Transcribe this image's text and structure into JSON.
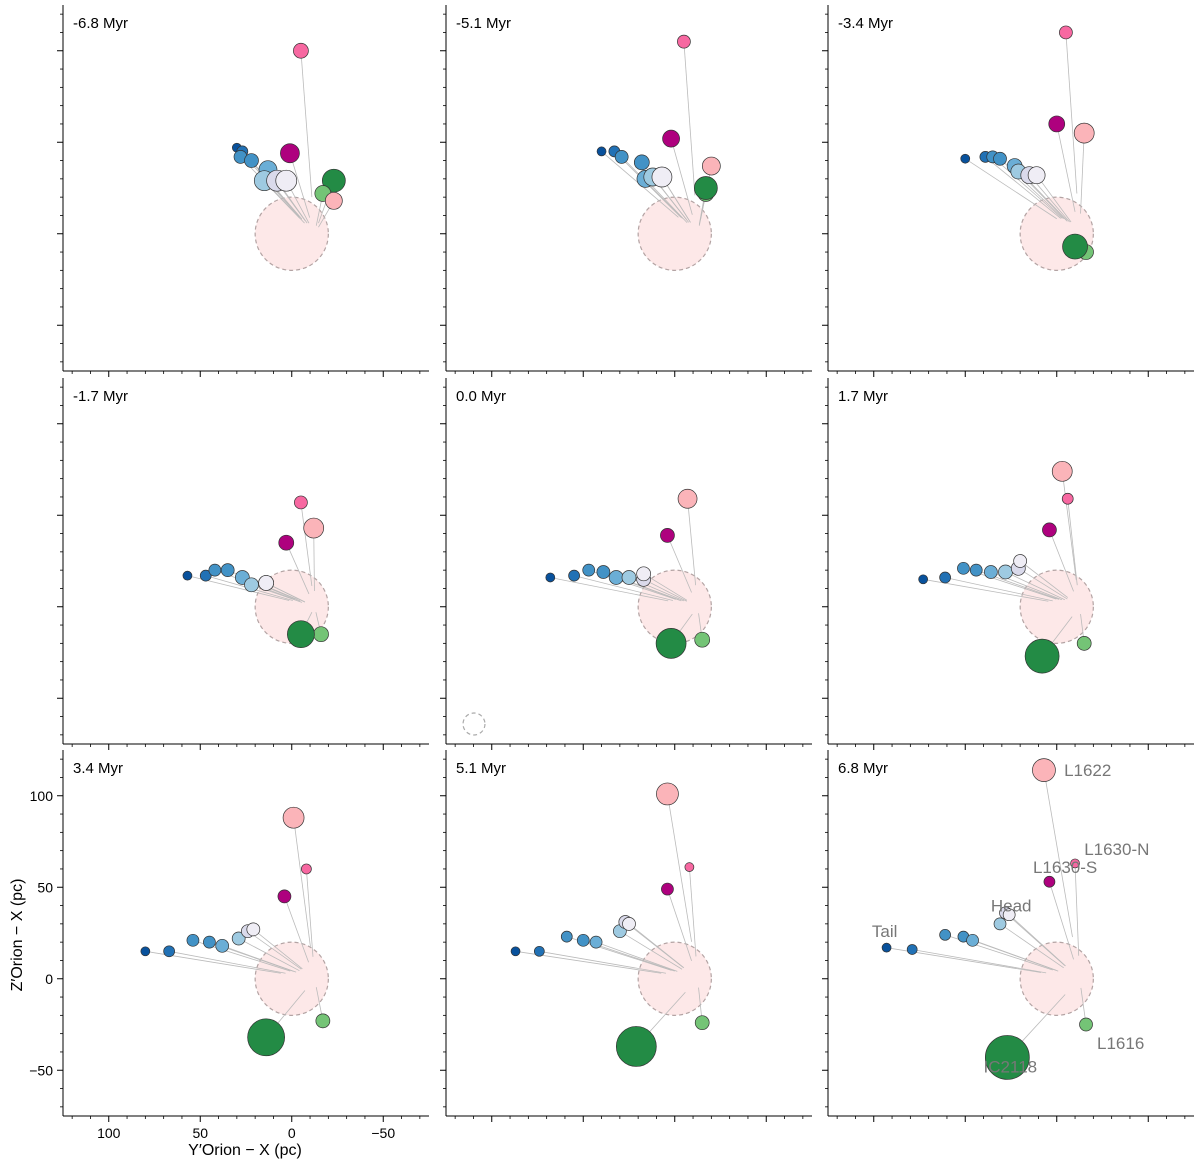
{
  "chart_data": {
    "type": "scatter",
    "xlabel": "Y′Orion − X (pc)",
    "ylabel": "Z′Orion − X (pc)",
    "x_axis": {
      "reversed": true,
      "xlim": [
        125,
        -75
      ],
      "ticks": [
        100,
        50,
        0,
        -50
      ],
      "tick_labels": [
        "100",
        "50",
        "0",
        "−50"
      ]
    },
    "y_axis": {
      "ylim": [
        -75,
        125
      ],
      "ticks": [
        -50,
        0,
        50,
        100
      ],
      "tick_labels": [
        "−50",
        "0",
        "50",
        "100"
      ]
    },
    "grid": false,
    "layout": {
      "rows": 3,
      "cols": 3
    },
    "bubble_region": {
      "center": [
        0,
        0
      ],
      "radius": 20,
      "fill": "#fde8e8",
      "stroke": "#b3a3a3"
    },
    "reference_circle_size": 6,
    "panels": [
      {
        "title": "-6.8 Myr",
        "points": [
          {
            "x": -5,
            "y": 100,
            "r": 7.5,
            "color": "#f768a1"
          },
          {
            "x": 30,
            "y": 47,
            "r": 4.5,
            "color": "#08519c"
          },
          {
            "x": 27,
            "y": 45,
            "r": 5.5,
            "color": "#2171b5"
          },
          {
            "x": 28,
            "y": 42,
            "r": 6.5,
            "color": "#4292c6"
          },
          {
            "x": 22,
            "y": 40,
            "r": 7.0,
            "color": "#4292c6"
          },
          {
            "x": 1,
            "y": 44,
            "r": 9.5,
            "color": "#ae017e"
          },
          {
            "x": 13,
            "y": 35,
            "r": 9.0,
            "color": "#6baed6"
          },
          {
            "x": 15,
            "y": 29,
            "r": 10.0,
            "color": "#9ecae1"
          },
          {
            "x": 8,
            "y": 29,
            "r": 10.5,
            "color": "#dadaeb"
          },
          {
            "x": 3,
            "y": 29,
            "r": 10.5,
            "color": "#efedf5"
          },
          {
            "x": -23,
            "y": 29,
            "r": 11.5,
            "color": "#238b45"
          },
          {
            "x": -17,
            "y": 22,
            "r": 8.0,
            "color": "#74c476"
          },
          {
            "x": -23,
            "y": 18,
            "r": 8.5,
            "color": "#fbb4b9"
          }
        ]
      },
      {
        "title": "-5.1 Myr",
        "points": [
          {
            "x": -5,
            "y": 105,
            "r": 6.5,
            "color": "#f768a1"
          },
          {
            "x": 40,
            "y": 45,
            "r": 4.5,
            "color": "#08519c"
          },
          {
            "x": 33,
            "y": 45,
            "r": 5.5,
            "color": "#2171b5"
          },
          {
            "x": 29,
            "y": 42,
            "r": 6.5,
            "color": "#4292c6"
          },
          {
            "x": 18,
            "y": 39,
            "r": 7.5,
            "color": "#4292c6"
          },
          {
            "x": 2,
            "y": 52,
            "r": 8.5,
            "color": "#ae017e"
          },
          {
            "x": 16,
            "y": 30,
            "r": 8.5,
            "color": "#6baed6"
          },
          {
            "x": 12,
            "y": 31,
            "r": 9.0,
            "color": "#9ecae1"
          },
          {
            "x": 7,
            "y": 31,
            "r": 9.5,
            "color": "#dadaeb"
          },
          {
            "x": 7,
            "y": 31,
            "r": 10.0,
            "color": "#efedf5"
          },
          {
            "x": -20,
            "y": 37,
            "r": 9.0,
            "color": "#fbb4b9"
          },
          {
            "x": -17,
            "y": 22,
            "r": 8.0,
            "color": "#74c476"
          },
          {
            "x": -17,
            "y": 25,
            "r": 11.5,
            "color": "#238b45"
          }
        ]
      },
      {
        "title": "-3.4 Myr",
        "points": [
          {
            "x": -5,
            "y": 110,
            "r": 6.5,
            "color": "#f768a1"
          },
          {
            "x": 50,
            "y": 41,
            "r": 4.5,
            "color": "#08519c"
          },
          {
            "x": 39,
            "y": 42,
            "r": 5.5,
            "color": "#2171b5"
          },
          {
            "x": 35,
            "y": 42,
            "r": 6.0,
            "color": "#4292c6"
          },
          {
            "x": 31,
            "y": 41,
            "r": 6.5,
            "color": "#4292c6"
          },
          {
            "x": 0,
            "y": 60,
            "r": 8.0,
            "color": "#ae017e"
          },
          {
            "x": 23,
            "y": 37,
            "r": 7.5,
            "color": "#6baed6"
          },
          {
            "x": 21,
            "y": 34,
            "r": 7.5,
            "color": "#9ecae1"
          },
          {
            "x": 15,
            "y": 32,
            "r": 8.5,
            "color": "#dadaeb"
          },
          {
            "x": 11,
            "y": 32,
            "r": 8.5,
            "color": "#efedf5"
          },
          {
            "x": -15,
            "y": 55,
            "r": 10.0,
            "color": "#fbb4b9"
          },
          {
            "x": -16,
            "y": -10,
            "r": 7.5,
            "color": "#74c476"
          },
          {
            "x": -10,
            "y": -7,
            "r": 12.5,
            "color": "#238b45"
          }
        ]
      },
      {
        "title": "-1.7 Myr",
        "points": [
          {
            "x": -5,
            "y": 57,
            "r": 6.5,
            "color": "#f768a1"
          },
          {
            "x": 57,
            "y": 17,
            "r": 4.5,
            "color": "#08519c"
          },
          {
            "x": 47,
            "y": 17,
            "r": 5.5,
            "color": "#2171b5"
          },
          {
            "x": 42,
            "y": 20,
            "r": 6.0,
            "color": "#4292c6"
          },
          {
            "x": 35,
            "y": 20,
            "r": 6.5,
            "color": "#4292c6"
          },
          {
            "x": 3,
            "y": 35,
            "r": 7.5,
            "color": "#ae017e"
          },
          {
            "x": 27,
            "y": 16,
            "r": 7.0,
            "color": "#6baed6"
          },
          {
            "x": 22,
            "y": 12,
            "r": 7.0,
            "color": "#9ecae1"
          },
          {
            "x": 14,
            "y": 13,
            "r": 7.5,
            "color": "#dadaeb"
          },
          {
            "x": 14,
            "y": 13,
            "r": 7.5,
            "color": "#efedf5"
          },
          {
            "x": -12,
            "y": 43,
            "r": 10.0,
            "color": "#fbb4b9"
          },
          {
            "x": -16,
            "y": -15,
            "r": 7.5,
            "color": "#74c476"
          },
          {
            "x": -5,
            "y": -15,
            "r": 13.5,
            "color": "#238b45"
          }
        ]
      },
      {
        "title": "0.0 Myr",
        "points": [
          {
            "x": -7,
            "y": 59,
            "r": 9.5,
            "color": "#fbb4b9"
          },
          {
            "x": 4,
            "y": 39,
            "r": 7.0,
            "color": "#ae017e"
          },
          {
            "x": 68,
            "y": 16,
            "r": 4.5,
            "color": "#08519c"
          },
          {
            "x": 55,
            "y": 17,
            "r": 5.5,
            "color": "#2171b5"
          },
          {
            "x": 47,
            "y": 20,
            "r": 6.0,
            "color": "#4292c6"
          },
          {
            "x": 39,
            "y": 19,
            "r": 6.5,
            "color": "#4292c6"
          },
          {
            "x": 32,
            "y": 16,
            "r": 7.0,
            "color": "#6baed6"
          },
          {
            "x": 25,
            "y": 16,
            "r": 7.0,
            "color": "#9ecae1"
          },
          {
            "x": 17,
            "y": 15,
            "r": 7.0,
            "color": "#dadaeb"
          },
          {
            "x": 17,
            "y": 18,
            "r": 7.0,
            "color": "#efedf5"
          },
          {
            "x": -15,
            "y": -18,
            "r": 7.5,
            "color": "#74c476"
          },
          {
            "x": 2,
            "y": -20,
            "r": 15.0,
            "color": "#238b45"
          }
        ]
      },
      {
        "title": "1.7 Myr",
        "points": [
          {
            "x": -3,
            "y": 74,
            "r": 10.0,
            "color": "#fbb4b9"
          },
          {
            "x": -6,
            "y": 59,
            "r": 5.5,
            "color": "#f768a1"
          },
          {
            "x": 4,
            "y": 42,
            "r": 7.0,
            "color": "#ae017e"
          },
          {
            "x": 73,
            "y": 15,
            "r": 4.5,
            "color": "#08519c"
          },
          {
            "x": 61,
            "y": 16,
            "r": 5.5,
            "color": "#2171b5"
          },
          {
            "x": 51,
            "y": 21,
            "r": 6.0,
            "color": "#4292c6"
          },
          {
            "x": 44,
            "y": 20,
            "r": 6.0,
            "color": "#4292c6"
          },
          {
            "x": 36,
            "y": 19,
            "r": 6.5,
            "color": "#6baed6"
          },
          {
            "x": 28,
            "y": 19,
            "r": 7.0,
            "color": "#9ecae1"
          },
          {
            "x": 21,
            "y": 21,
            "r": 7.0,
            "color": "#dadaeb"
          },
          {
            "x": 20,
            "y": 25,
            "r": 6.5,
            "color": "#efedf5"
          },
          {
            "x": -15,
            "y": -20,
            "r": 7.0,
            "color": "#74c476"
          },
          {
            "x": 8,
            "y": -27,
            "r": 17.0,
            "color": "#238b45"
          }
        ]
      },
      {
        "title": "3.4 Myr",
        "points": [
          {
            "x": -1,
            "y": 88,
            "r": 10.5,
            "color": "#fbb4b9"
          },
          {
            "x": -8,
            "y": 60,
            "r": 5.0,
            "color": "#f768a1"
          },
          {
            "x": 4,
            "y": 45,
            "r": 6.5,
            "color": "#ae017e"
          },
          {
            "x": 80,
            "y": 15,
            "r": 4.5,
            "color": "#08519c"
          },
          {
            "x": 67,
            "y": 15,
            "r": 5.5,
            "color": "#2171b5"
          },
          {
            "x": 54,
            "y": 21,
            "r": 6.0,
            "color": "#4292c6"
          },
          {
            "x": 45,
            "y": 20,
            "r": 6.0,
            "color": "#4292c6"
          },
          {
            "x": 38,
            "y": 18,
            "r": 6.5,
            "color": "#6baed6"
          },
          {
            "x": 29,
            "y": 22,
            "r": 6.5,
            "color": "#9ecae1"
          },
          {
            "x": 24,
            "y": 26,
            "r": 6.5,
            "color": "#dadaeb"
          },
          {
            "x": 21,
            "y": 27,
            "r": 6.5,
            "color": "#efedf5"
          },
          {
            "x": -17,
            "y": -23,
            "r": 7.0,
            "color": "#74c476"
          },
          {
            "x": 14,
            "y": -32,
            "r": 18.5,
            "color": "#238b45"
          }
        ]
      },
      {
        "title": "5.1 Myr",
        "points": [
          {
            "x": 4,
            "y": 101,
            "r": 11.0,
            "color": "#fbb4b9"
          },
          {
            "x": -8,
            "y": 61,
            "r": 4.5,
            "color": "#f768a1"
          },
          {
            "x": 4,
            "y": 49,
            "r": 6.0,
            "color": "#ae017e"
          },
          {
            "x": 87,
            "y": 15,
            "r": 4.5,
            "color": "#08519c"
          },
          {
            "x": 74,
            "y": 15,
            "r": 5.0,
            "color": "#2171b5"
          },
          {
            "x": 59,
            "y": 23,
            "r": 5.5,
            "color": "#4292c6"
          },
          {
            "x": 50,
            "y": 21,
            "r": 6.0,
            "color": "#4292c6"
          },
          {
            "x": 43,
            "y": 20,
            "r": 6.0,
            "color": "#6baed6"
          },
          {
            "x": 30,
            "y": 26,
            "r": 6.5,
            "color": "#9ecae1"
          },
          {
            "x": 27,
            "y": 31,
            "r": 6.5,
            "color": "#dadaeb"
          },
          {
            "x": 25,
            "y": 30,
            "r": 6.5,
            "color": "#efedf5"
          },
          {
            "x": -15,
            "y": -24,
            "r": 7.0,
            "color": "#74c476"
          },
          {
            "x": 21,
            "y": -37,
            "r": 20.0,
            "color": "#238b45"
          }
        ]
      },
      {
        "title": "6.8 Myr",
        "points": [
          {
            "x": 7,
            "y": 114,
            "r": 11.5,
            "color": "#fbb4b9"
          },
          {
            "x": -10,
            "y": 63,
            "r": 4.5,
            "color": "#f768a1"
          },
          {
            "x": 4,
            "y": 53,
            "r": 5.5,
            "color": "#ae017e"
          },
          {
            "x": 93,
            "y": 17,
            "r": 4.5,
            "color": "#08519c"
          },
          {
            "x": 79,
            "y": 16,
            "r": 5.0,
            "color": "#2171b5"
          },
          {
            "x": 61,
            "y": 24,
            "r": 5.5,
            "color": "#4292c6"
          },
          {
            "x": 51,
            "y": 23,
            "r": 5.5,
            "color": "#4292c6"
          },
          {
            "x": 46,
            "y": 21,
            "r": 6.0,
            "color": "#6baed6"
          },
          {
            "x": 31,
            "y": 30,
            "r": 6.0,
            "color": "#9ecae1"
          },
          {
            "x": 28,
            "y": 36,
            "r": 6.0,
            "color": "#dadaeb"
          },
          {
            "x": 26,
            "y": 35,
            "r": 6.0,
            "color": "#efedf5"
          },
          {
            "x": -16,
            "y": -25,
            "r": 6.5,
            "color": "#74c476"
          },
          {
            "x": 27,
            "y": -43,
            "r": 22.0,
            "color": "#238b45"
          }
        ],
        "annotations": [
          {
            "text": "L1622",
            "x": -4,
            "y": 114
          },
          {
            "text": "L1630-N",
            "x": -15,
            "y": 71
          },
          {
            "text": "L1630-S",
            "x": 13,
            "y": 61
          },
          {
            "text": "Head",
            "x": 36,
            "y": 40
          },
          {
            "text": "Tail",
            "x": 101,
            "y": 26
          },
          {
            "text": "L1616",
            "x": -22,
            "y": -35
          },
          {
            "text": "IC2118",
            "x": 40,
            "y": -48
          }
        ]
      }
    ]
  }
}
